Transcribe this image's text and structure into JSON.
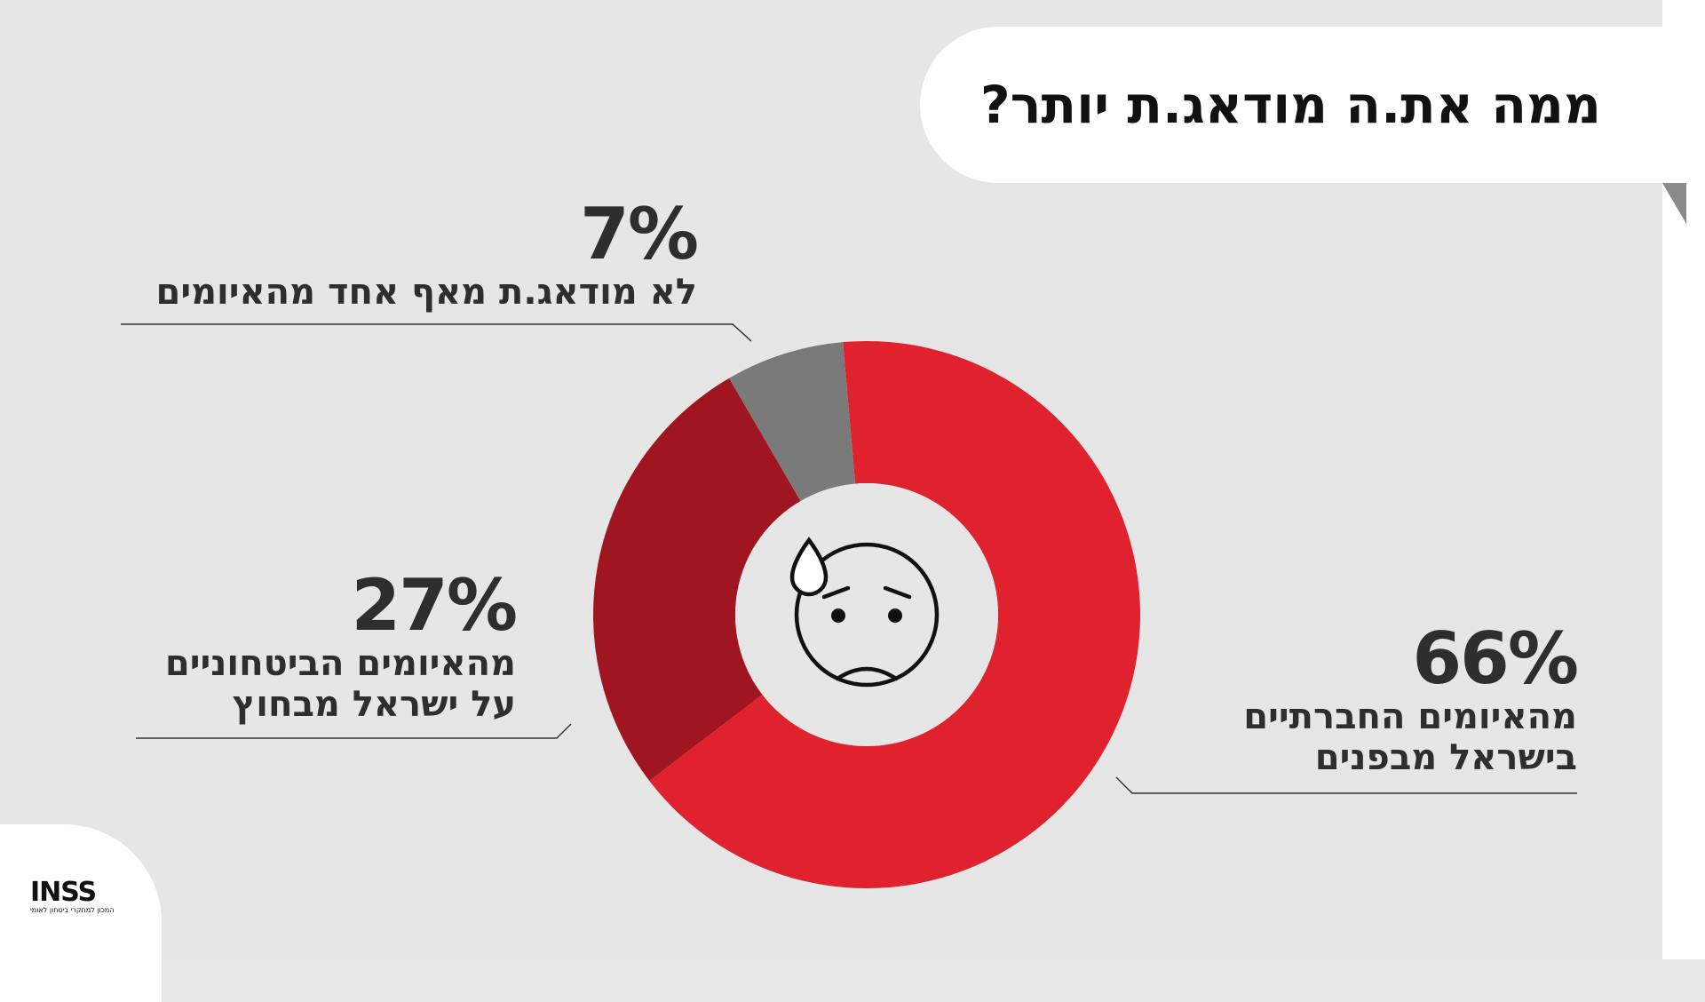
{
  "title": "ממה את.ה מודאג.ת יותר?",
  "labels": {
    "none": {
      "pct": "7%",
      "lines": [
        "לא מודאג.ת מאף אחד מהאיומים"
      ]
    },
    "external": {
      "pct": "27%",
      "lines": [
        "מהאיומים הביטחוניים",
        "על ישראל מבחוץ"
      ]
    },
    "internal": {
      "pct": "66%",
      "lines": [
        "מהאיומים החברתיים",
        "בישראל מבפנים"
      ]
    }
  },
  "logo": {
    "mark": "INSS",
    "subtitle": "המכון למחקרי ביטחון לאומי"
  },
  "icons": {
    "center": "worried-face-icon"
  },
  "chart_data": {
    "type": "pie",
    "donut": true,
    "title": "ממה את.ה מודאג.ת יותר?",
    "slices": [
      {
        "label": "מהאיומים החברתיים בישראל מבפנים",
        "value": 66,
        "color": "#e0222f"
      },
      {
        "label": "מהאיומים הביטחוניים על ישראל מבחוץ",
        "value": 27,
        "color": "#9f1620"
      },
      {
        "label": "לא מודאג.ת מאף אחד מהאיומים",
        "value": 7,
        "color": "#7a7a7a"
      }
    ]
  }
}
